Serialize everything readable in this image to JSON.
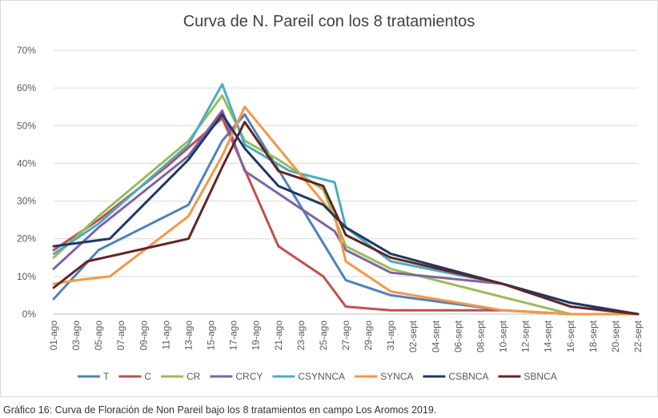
{
  "chart_data": {
    "type": "line",
    "title": "Curva de N. Pareil con los 8 tratamientos",
    "xlabel": "",
    "ylabel": "",
    "ylim": [
      0,
      70
    ],
    "yticks": [
      "0%",
      "10%",
      "20%",
      "30%",
      "40%",
      "50%",
      "60%",
      "70%"
    ],
    "grid": true,
    "legend": "bottom",
    "x": [
      "01-ago",
      "02-ago",
      "03-ago",
      "04-ago",
      "05-ago",
      "06-ago",
      "07-ago",
      "08-ago",
      "09-ago",
      "10-ago",
      "11-ago",
      "12-ago",
      "13-ago",
      "14-ago",
      "15-ago",
      "16-ago",
      "17-ago",
      "18-ago",
      "19-ago",
      "20-ago",
      "21-ago",
      "22-ago",
      "23-ago",
      "24-ago",
      "25-ago",
      "26-ago",
      "27-ago",
      "28-ago",
      "29-ago",
      "30-ago",
      "31-ago",
      "01-sept",
      "02-sept",
      "03-sept",
      "04-sept",
      "05-sept",
      "06-sept",
      "07-sept",
      "08-sept",
      "09-sept",
      "10-sept",
      "11-sept",
      "12-sept",
      "13-sept",
      "14-sept",
      "15-sept",
      "16-sept",
      "17-sept",
      "18-sept",
      "19-sept",
      "20-sept",
      "21-sept",
      "22-sept"
    ],
    "xticks": [
      "01-ago",
      "03-ago",
      "05-ago",
      "07-ago",
      "09-ago",
      "11-ago",
      "13-ago",
      "15-ago",
      "17-ago",
      "19-ago",
      "21-ago",
      "23-ago",
      "25-ago",
      "27-ago",
      "29-ago",
      "31-ago",
      "02-sept",
      "04-sept",
      "06-sept",
      "08-sept",
      "10-sept",
      "12-sept",
      "14-sept",
      "16-sept",
      "18-sept",
      "20-sept",
      "22-sept"
    ],
    "series": [
      {
        "name": "T",
        "color": "#4f81bd",
        "points": [
          [
            "01-ago",
            4
          ],
          [
            "05-ago",
            17
          ],
          [
            "13-ago",
            29
          ],
          [
            "16-ago",
            46
          ],
          [
            "18-ago",
            53
          ],
          [
            "27-ago",
            9
          ],
          [
            "31-ago",
            5
          ],
          [
            "10-sept",
            1
          ],
          [
            "16-sept",
            0
          ],
          [
            "22-sept",
            0
          ]
        ]
      },
      {
        "name": "C",
        "color": "#c0504d",
        "points": [
          [
            "01-ago",
            17
          ],
          [
            "05-ago",
            25
          ],
          [
            "11-ago",
            39
          ],
          [
            "16-ago",
            52
          ],
          [
            "21-ago",
            18
          ],
          [
            "25-ago",
            10
          ],
          [
            "27-ago",
            2
          ],
          [
            "31-ago",
            1
          ],
          [
            "10-sept",
            1
          ],
          [
            "16-sept",
            0
          ],
          [
            "22-sept",
            0
          ]
        ]
      },
      {
        "name": "CR",
        "color": "#9bbb59",
        "points": [
          [
            "01-ago",
            15
          ],
          [
            "05-ago",
            26
          ],
          [
            "13-ago",
            46
          ],
          [
            "16-ago",
            58
          ],
          [
            "18-ago",
            46
          ],
          [
            "21-ago",
            41
          ],
          [
            "25-ago",
            33
          ],
          [
            "27-ago",
            18
          ],
          [
            "31-ago",
            12
          ],
          [
            "16-sept",
            0
          ],
          [
            "22-sept",
            0
          ]
        ]
      },
      {
        "name": "CRCY",
        "color": "#8064a2",
        "points": [
          [
            "01-ago",
            12
          ],
          [
            "05-ago",
            23
          ],
          [
            "13-ago",
            42
          ],
          [
            "16-ago",
            54
          ],
          [
            "18-ago",
            38
          ],
          [
            "22-ago",
            30
          ],
          [
            "26-ago",
            22
          ],
          [
            "27-ago",
            17
          ],
          [
            "31-ago",
            11
          ],
          [
            "10-sept",
            8
          ],
          [
            "16-sept",
            2
          ],
          [
            "22-sept",
            0
          ]
        ]
      },
      {
        "name": "CSYNNCA",
        "color": "#4bacc6",
        "points": [
          [
            "01-ago",
            16
          ],
          [
            "05-ago",
            24
          ],
          [
            "13-ago",
            45
          ],
          [
            "16-ago",
            61
          ],
          [
            "18-ago",
            45
          ],
          [
            "22-ago",
            38
          ],
          [
            "26-ago",
            35
          ],
          [
            "27-ago",
            23
          ],
          [
            "31-ago",
            14
          ],
          [
            "10-sept",
            8
          ],
          [
            "16-sept",
            3
          ],
          [
            "22-sept",
            0
          ]
        ]
      },
      {
        "name": "SYNCA",
        "color": "#f79646",
        "points": [
          [
            "01-ago",
            8
          ],
          [
            "03-ago",
            9
          ],
          [
            "06-ago",
            10
          ],
          [
            "13-ago",
            26
          ],
          [
            "16-ago",
            42
          ],
          [
            "18-ago",
            55
          ],
          [
            "26-ago",
            26
          ],
          [
            "27-ago",
            14
          ],
          [
            "31-ago",
            6
          ],
          [
            "10-sept",
            1
          ],
          [
            "16-sept",
            0
          ],
          [
            "22-sept",
            0
          ]
        ]
      },
      {
        "name": "CSBNCA",
        "color": "#1f3864",
        "points": [
          [
            "01-ago",
            18
          ],
          [
            "06-ago",
            20
          ],
          [
            "13-ago",
            41
          ],
          [
            "16-ago",
            53
          ],
          [
            "18-ago",
            44
          ],
          [
            "21-ago",
            34
          ],
          [
            "25-ago",
            29
          ],
          [
            "27-ago",
            23
          ],
          [
            "31-ago",
            16
          ],
          [
            "10-sept",
            8
          ],
          [
            "16-sept",
            3
          ],
          [
            "22-sept",
            0
          ]
        ]
      },
      {
        "name": "SBNCA",
        "color": "#632523",
        "points": [
          [
            "01-ago",
            7
          ],
          [
            "04-ago",
            14
          ],
          [
            "07-ago",
            16
          ],
          [
            "13-ago",
            20
          ],
          [
            "16-ago",
            39
          ],
          [
            "18-ago",
            51
          ],
          [
            "21-ago",
            38
          ],
          [
            "25-ago",
            34
          ],
          [
            "27-ago",
            21
          ],
          [
            "31-ago",
            15
          ],
          [
            "10-sept",
            8
          ],
          [
            "16-sept",
            2
          ],
          [
            "22-sept",
            0
          ]
        ]
      }
    ]
  },
  "caption": "Gráfico 16: Curva de Floración de Non Pareil bajo los 8 tratamientos en campo Los Aromos 2019."
}
